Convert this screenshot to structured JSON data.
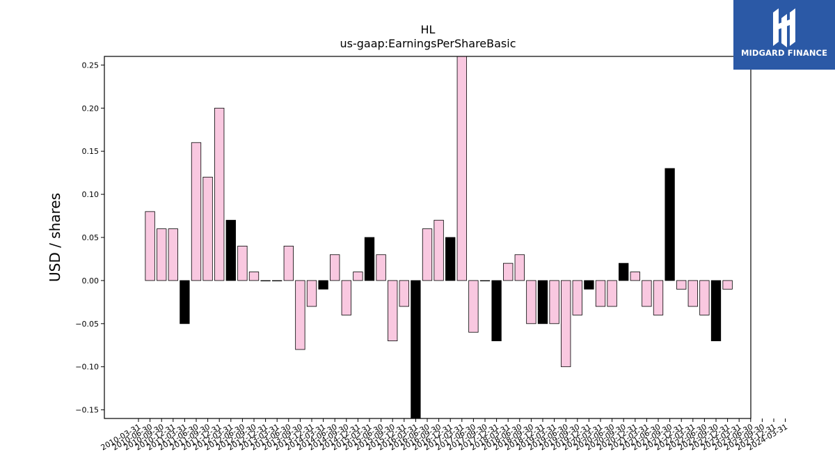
{
  "logo": {
    "name": "MIDGARD FINANCE"
  },
  "colors": {
    "positive": "#f9c8e0",
    "negative_dark": "#000000",
    "logo_bg": "#2b59a6"
  },
  "chart_data": {
    "type": "bar",
    "title": "HL",
    "subtitle": "us-gaap:EarningsPerShareBasic",
    "xlabel": "",
    "ylabel": "USD / shares",
    "ylim": [
      -0.16,
      0.26
    ],
    "yticks": [
      -0.15,
      -0.1,
      -0.05,
      0.0,
      0.05,
      0.1,
      0.15,
      0.2,
      0.25
    ],
    "ytick_labels": [
      "−0.15",
      "−0.10",
      "−0.05",
      "0.00",
      "0.05",
      "0.10",
      "0.15",
      "0.20",
      "0.25"
    ],
    "grid": false,
    "categories": [
      "2010-03-31",
      "2010-06-30",
      "2010-09-30",
      "2010-12-31",
      "2011-03-31",
      "2011-06-30",
      "2011-09-30",
      "2011-12-31",
      "2012-03-31",
      "2012-06-30",
      "2012-09-30",
      "2012-12-31",
      "2013-03-31",
      "2013-06-30",
      "2013-09-30",
      "2013-12-31",
      "2014-03-31",
      "2014-06-30",
      "2014-09-30",
      "2014-12-31",
      "2015-03-31",
      "2015-06-30",
      "2015-09-30",
      "2015-12-31",
      "2016-03-31",
      "2016-06-30",
      "2016-09-30",
      "2016-12-31",
      "2017-03-31",
      "2017-06-30",
      "2017-09-30",
      "2017-12-31",
      "2018-03-31",
      "2018-06-30",
      "2018-09-30",
      "2018-12-31",
      "2019-03-31",
      "2019-06-30",
      "2019-09-30",
      "2019-12-31",
      "2020-03-31",
      "2020-06-30",
      "2020-09-30",
      "2020-12-31",
      "2021-03-31",
      "2021-06-30",
      "2021-09-30",
      "2021-12-31",
      "2022-03-31",
      "2022-06-30",
      "2022-09-30",
      "2022-12-31",
      "2023-03-31",
      "2023-06-30",
      "2023-09-30",
      "2023-12-31",
      "2024-03-31"
    ],
    "values": [
      null,
      0.08,
      0.06,
      0.06,
      -0.05,
      0.16,
      0.12,
      0.2,
      0.07,
      0.04,
      0.01,
      0.0,
      0.0,
      0.04,
      -0.08,
      -0.03,
      -0.01,
      0.03,
      -0.04,
      0.01,
      0.05,
      0.03,
      -0.07,
      -0.03,
      -0.17,
      0.06,
      0.07,
      0.05,
      0.27,
      -0.06,
      0.0,
      -0.07,
      0.02,
      0.03,
      -0.05,
      -0.05,
      -0.05,
      -0.1,
      -0.04,
      -0.01,
      -0.03,
      -0.03,
      0.02,
      0.01,
      -0.03,
      -0.04,
      0.13,
      -0.01,
      -0.03,
      -0.04,
      -0.07,
      -0.01,
      null,
      null,
      null,
      null,
      null
    ],
    "highlight": [
      false,
      false,
      false,
      false,
      true,
      false,
      false,
      false,
      true,
      false,
      false,
      false,
      false,
      false,
      false,
      false,
      true,
      false,
      false,
      false,
      true,
      false,
      false,
      false,
      true,
      false,
      false,
      true,
      false,
      false,
      false,
      true,
      false,
      false,
      false,
      true,
      false,
      false,
      false,
      true,
      false,
      false,
      true,
      false,
      false,
      false,
      true,
      false,
      false,
      false,
      true,
      false,
      false,
      false,
      false,
      false,
      false
    ]
  }
}
